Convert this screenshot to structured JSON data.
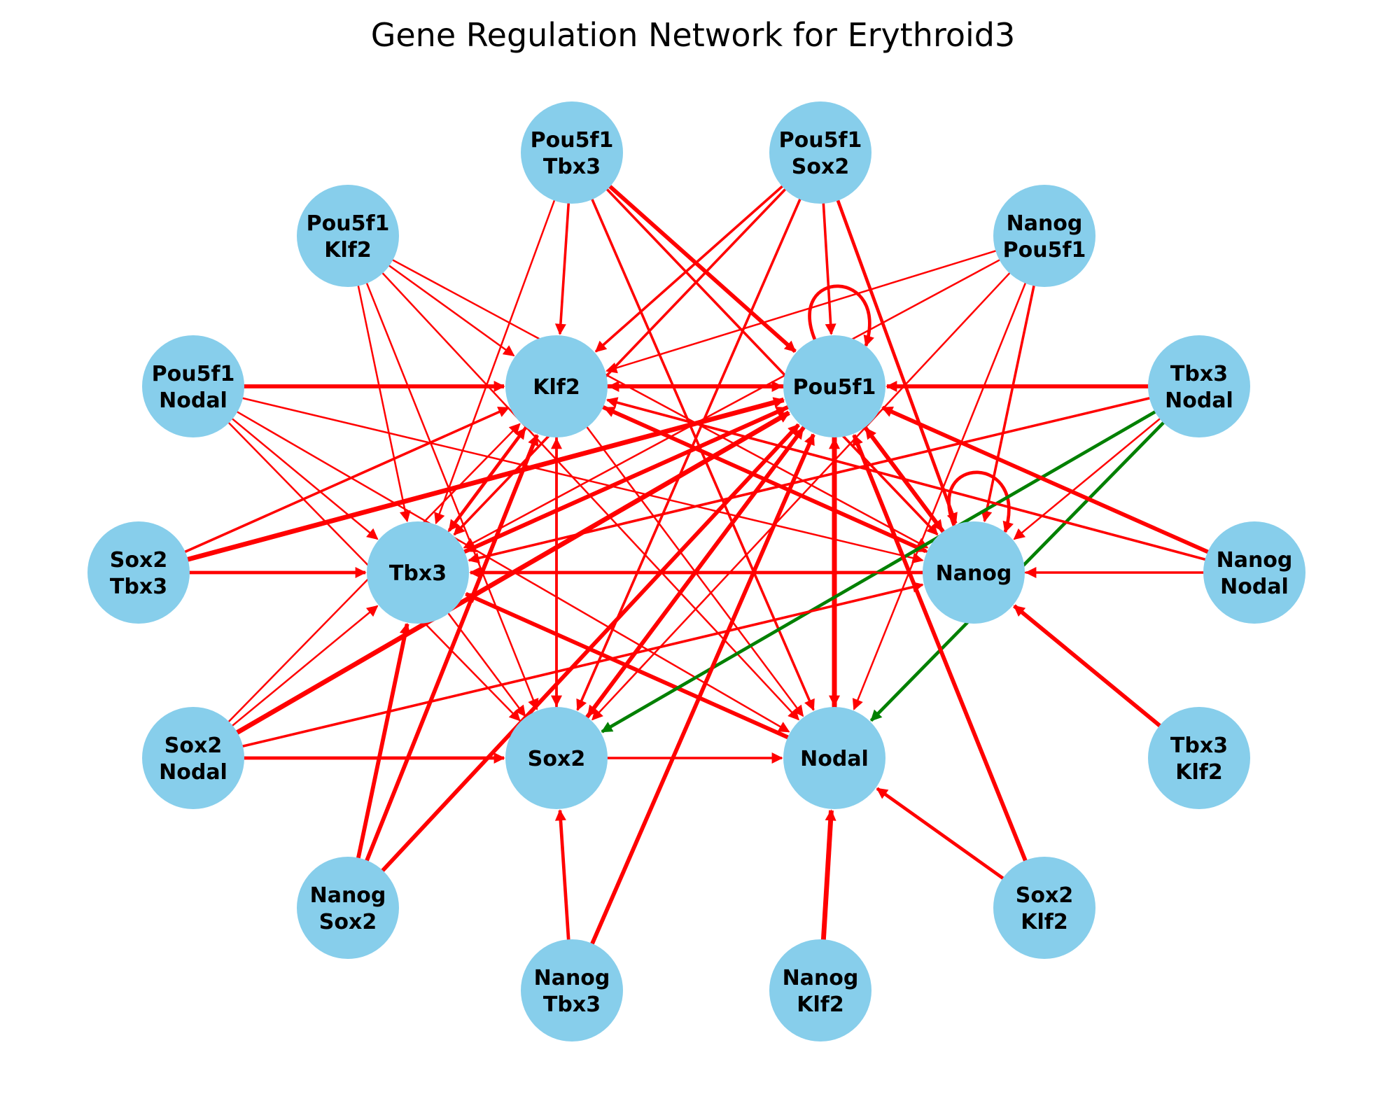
{
  "title": "Gene Regulation Network for Erythroid3",
  "colors": {
    "node_fill": "#87CEEB",
    "activation_edge": "#ff0000",
    "inhibition_edge": "#008000",
    "background": "#ffffff"
  },
  "nodes": [
    {
      "id": "Pou5f1",
      "lines": [
        "Pou5f1"
      ]
    },
    {
      "id": "Klf2",
      "lines": [
        "Klf2"
      ]
    },
    {
      "id": "Tbx3",
      "lines": [
        "Tbx3"
      ]
    },
    {
      "id": "Nanog",
      "lines": [
        "Nanog"
      ]
    },
    {
      "id": "Sox2",
      "lines": [
        "Sox2"
      ]
    },
    {
      "id": "Nodal",
      "lines": [
        "Nodal"
      ]
    },
    {
      "id": "Pou5f1_Tbx3",
      "lines": [
        "Pou5f1",
        "Tbx3"
      ]
    },
    {
      "id": "Pou5f1_Sox2",
      "lines": [
        "Pou5f1",
        "Sox2"
      ]
    },
    {
      "id": "Pou5f1_Klf2",
      "lines": [
        "Pou5f1",
        "Klf2"
      ]
    },
    {
      "id": "Nanog_Pou5f1",
      "lines": [
        "Nanog",
        "Pou5f1"
      ]
    },
    {
      "id": "Pou5f1_Nodal",
      "lines": [
        "Pou5f1",
        "Nodal"
      ]
    },
    {
      "id": "Tbx3_Nodal",
      "lines": [
        "Tbx3",
        "Nodal"
      ]
    },
    {
      "id": "Sox2_Tbx3",
      "lines": [
        "Sox2",
        "Tbx3"
      ]
    },
    {
      "id": "Nanog_Nodal",
      "lines": [
        "Nanog",
        "Nodal"
      ]
    },
    {
      "id": "Sox2_Nodal",
      "lines": [
        "Sox2",
        "Nodal"
      ]
    },
    {
      "id": "Tbx3_Klf2",
      "lines": [
        "Tbx3",
        "Klf2"
      ]
    },
    {
      "id": "Nanog_Sox2",
      "lines": [
        "Nanog",
        "Sox2"
      ]
    },
    {
      "id": "Sox2_Klf2",
      "lines": [
        "Sox2",
        "Klf2"
      ]
    },
    {
      "id": "Nanog_Tbx3",
      "lines": [
        "Nanog",
        "Tbx3"
      ]
    },
    {
      "id": "Nanog_Klf2",
      "lines": [
        "Nanog",
        "Klf2"
      ]
    }
  ],
  "edges": [
    {
      "source": "Pou5f1",
      "target": "Pou5f1",
      "type": "activation",
      "weight": 3
    },
    {
      "source": "Nanog",
      "target": "Nanog",
      "type": "activation",
      "weight": 3
    },
    {
      "source": "Klf2",
      "target": "Pou5f1",
      "type": "activation",
      "weight": 4
    },
    {
      "source": "Pou5f1",
      "target": "Klf2",
      "type": "activation",
      "weight": 4
    },
    {
      "source": "Pou5f1",
      "target": "Tbx3",
      "type": "activation",
      "weight": 4
    },
    {
      "source": "Tbx3",
      "target": "Pou5f1",
      "type": "activation",
      "weight": 4
    },
    {
      "source": "Pou5f1",
      "target": "Sox2",
      "type": "activation",
      "weight": 4
    },
    {
      "source": "Sox2",
      "target": "Pou5f1",
      "type": "activation",
      "weight": 4
    },
    {
      "source": "Pou5f1",
      "target": "Nodal",
      "type": "activation",
      "weight": 5
    },
    {
      "source": "Nodal",
      "target": "Pou5f1",
      "type": "activation",
      "weight": 5
    },
    {
      "source": "Pou5f1",
      "target": "Nanog",
      "type": "activation",
      "weight": 4
    },
    {
      "source": "Nanog",
      "target": "Pou5f1",
      "type": "activation",
      "weight": 4
    },
    {
      "source": "Klf2",
      "target": "Tbx3",
      "type": "activation",
      "weight": 3
    },
    {
      "source": "Tbx3",
      "target": "Klf2",
      "type": "activation",
      "weight": 1
    },
    {
      "source": "Klf2",
      "target": "Nanog",
      "type": "activation",
      "weight": 4
    },
    {
      "source": "Nanog",
      "target": "Klf2",
      "type": "activation",
      "weight": 2
    },
    {
      "source": "Klf2",
      "target": "Sox2",
      "type": "activation",
      "weight": 2
    },
    {
      "source": "Sox2",
      "target": "Klf2",
      "type": "activation",
      "weight": 2
    },
    {
      "source": "Klf2",
      "target": "Nodal",
      "type": "activation",
      "weight": 1
    },
    {
      "source": "Nanog",
      "target": "Tbx3",
      "type": "activation",
      "weight": 3
    },
    {
      "source": "Nodal",
      "target": "Tbx3",
      "type": "activation",
      "weight": 4
    },
    {
      "source": "Tbx3",
      "target": "Sox2",
      "type": "activation",
      "weight": 1
    },
    {
      "source": "Sox2",
      "target": "Nodal",
      "type": "activation",
      "weight": 2
    },
    {
      "source": "Pou5f1_Tbx3",
      "target": "Klf2",
      "type": "activation",
      "weight": 2
    },
    {
      "source": "Pou5f1_Tbx3",
      "target": "Pou5f1",
      "type": "activation",
      "weight": 4
    },
    {
      "source": "Pou5f1_Tbx3",
      "target": "Tbx3",
      "type": "activation",
      "weight": 1
    },
    {
      "source": "Pou5f1_Tbx3",
      "target": "Nanog",
      "type": "activation",
      "weight": 2
    },
    {
      "source": "Pou5f1_Tbx3",
      "target": "Nodal",
      "type": "activation",
      "weight": 2
    },
    {
      "source": "Pou5f1_Sox2",
      "target": "Klf2",
      "type": "activation",
      "weight": 2
    },
    {
      "source": "Pou5f1_Sox2",
      "target": "Pou5f1",
      "type": "activation",
      "weight": 2
    },
    {
      "source": "Pou5f1_Sox2",
      "target": "Tbx3",
      "type": "activation",
      "weight": 2
    },
    {
      "source": "Pou5f1_Sox2",
      "target": "Sox2",
      "type": "activation",
      "weight": 2
    },
    {
      "source": "Pou5f1_Sox2",
      "target": "Nanog",
      "type": "activation",
      "weight": 3
    },
    {
      "source": "Pou5f1_Klf2",
      "target": "Klf2",
      "type": "activation",
      "weight": 1
    },
    {
      "source": "Pou5f1_Klf2",
      "target": "Tbx3",
      "type": "activation",
      "weight": 1
    },
    {
      "source": "Pou5f1_Klf2",
      "target": "Sox2",
      "type": "activation",
      "weight": 1
    },
    {
      "source": "Pou5f1_Klf2",
      "target": "Nodal",
      "type": "activation",
      "weight": 1
    },
    {
      "source": "Pou5f1_Klf2",
      "target": "Nanog",
      "type": "activation",
      "weight": 1
    },
    {
      "source": "Nanog_Pou5f1",
      "target": "Klf2",
      "type": "activation",
      "weight": 1
    },
    {
      "source": "Nanog_Pou5f1",
      "target": "Tbx3",
      "type": "activation",
      "weight": 1
    },
    {
      "source": "Nanog_Pou5f1",
      "target": "Nanog",
      "type": "activation",
      "weight": 2
    },
    {
      "source": "Nanog_Pou5f1",
      "target": "Sox2",
      "type": "activation",
      "weight": 1
    },
    {
      "source": "Nanog_Pou5f1",
      "target": "Nodal",
      "type": "activation",
      "weight": 1
    },
    {
      "source": "Pou5f1_Nodal",
      "target": "Klf2",
      "type": "activation",
      "weight": 4
    },
    {
      "source": "Pou5f1_Nodal",
      "target": "Tbx3",
      "type": "activation",
      "weight": 1
    },
    {
      "source": "Pou5f1_Nodal",
      "target": "Sox2",
      "type": "activation",
      "weight": 1
    },
    {
      "source": "Pou5f1_Nodal",
      "target": "Nanog",
      "type": "activation",
      "weight": 1
    },
    {
      "source": "Pou5f1_Nodal",
      "target": "Nodal",
      "type": "activation",
      "weight": 1
    },
    {
      "source": "Tbx3_Nodal",
      "target": "Pou5f1",
      "type": "activation",
      "weight": 4
    },
    {
      "source": "Tbx3_Nodal",
      "target": "Tbx3",
      "type": "activation",
      "weight": 2
    },
    {
      "source": "Tbx3_Nodal",
      "target": "Sox2",
      "type": "inhibition",
      "weight": 3
    },
    {
      "source": "Tbx3_Nodal",
      "target": "Nodal",
      "type": "inhibition",
      "weight": 3
    },
    {
      "source": "Tbx3_Nodal",
      "target": "Nanog",
      "type": "activation",
      "weight": 1
    },
    {
      "source": "Sox2_Tbx3",
      "target": "Klf2",
      "type": "activation",
      "weight": 2
    },
    {
      "source": "Sox2_Tbx3",
      "target": "Pou5f1",
      "type": "activation",
      "weight": 5
    },
    {
      "source": "Sox2_Tbx3",
      "target": "Tbx3",
      "type": "activation",
      "weight": 3
    },
    {
      "source": "Nanog_Nodal",
      "target": "Pou5f1",
      "type": "activation",
      "weight": 4
    },
    {
      "source": "Nanog_Nodal",
      "target": "Nanog",
      "type": "activation",
      "weight": 2
    },
    {
      "source": "Nanog_Nodal",
      "target": "Klf2",
      "type": "activation",
      "weight": 2
    },
    {
      "source": "Nanog_Nodal",
      "target": "Tbx3",
      "type": "activation",
      "weight": 1
    },
    {
      "source": "Sox2_Nodal",
      "target": "Pou5f1",
      "type": "activation",
      "weight": 5
    },
    {
      "source": "Sox2_Nodal",
      "target": "Tbx3",
      "type": "activation",
      "weight": 1
    },
    {
      "source": "Sox2_Nodal",
      "target": "Sox2",
      "type": "activation",
      "weight": 3
    },
    {
      "source": "Sox2_Nodal",
      "target": "Nanog",
      "type": "activation",
      "weight": 2
    },
    {
      "source": "Sox2_Nodal",
      "target": "Klf2",
      "type": "activation",
      "weight": 1
    },
    {
      "source": "Tbx3_Klf2",
      "target": "Nanog",
      "type": "activation",
      "weight": 4
    },
    {
      "source": "Nanog_Sox2",
      "target": "Klf2",
      "type": "activation",
      "weight": 4
    },
    {
      "source": "Nanog_Sox2",
      "target": "Tbx3",
      "type": "activation",
      "weight": 4
    },
    {
      "source": "Nanog_Sox2",
      "target": "Pou5f1",
      "type": "activation",
      "weight": 4
    },
    {
      "source": "Sox2_Klf2",
      "target": "Pou5f1",
      "type": "activation",
      "weight": 4
    },
    {
      "source": "Sox2_Klf2",
      "target": "Nodal",
      "type": "activation",
      "weight": 3
    },
    {
      "source": "Nanog_Tbx3",
      "target": "Pou5f1",
      "type": "activation",
      "weight": 4
    },
    {
      "source": "Nanog_Tbx3",
      "target": "Sox2",
      "type": "activation",
      "weight": 3
    },
    {
      "source": "Nanog_Klf2",
      "target": "Nodal",
      "type": "activation",
      "weight": 5
    }
  ]
}
